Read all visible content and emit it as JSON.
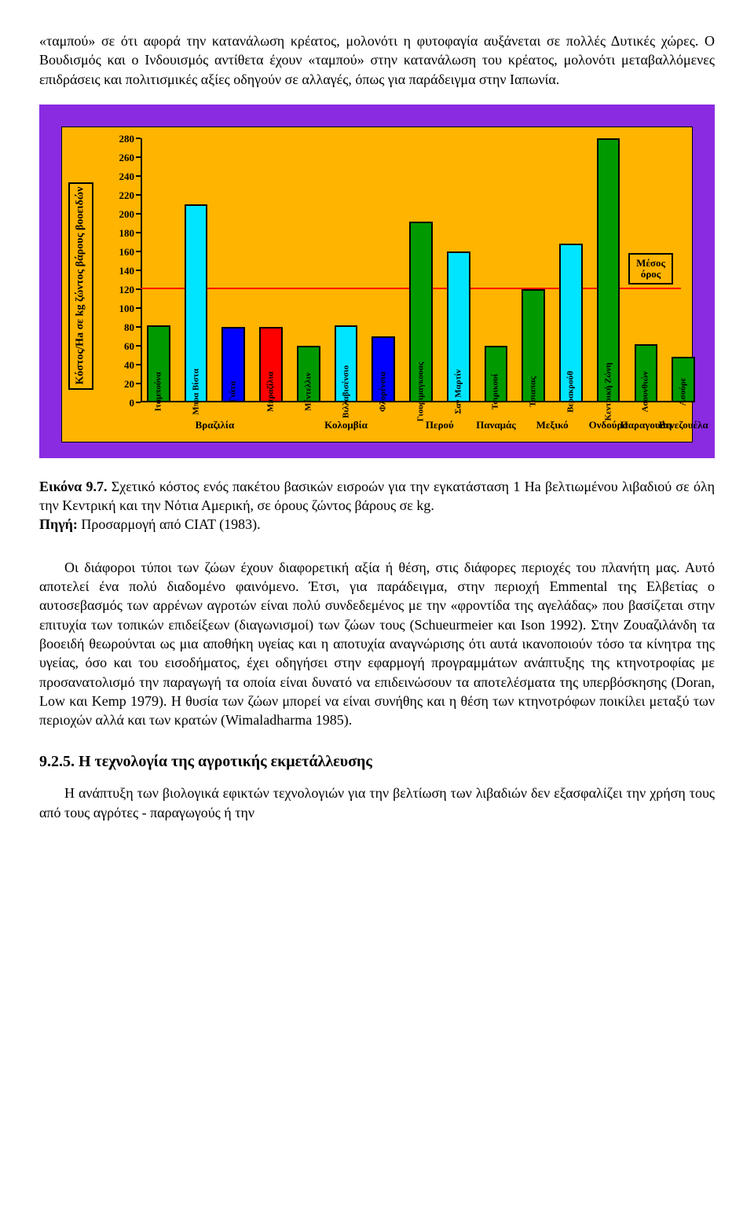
{
  "intro_para": "«ταμπού» σε ότι αφορά την κατανάλωση κρέατος, μολονότι η φυτοφαγία αυξάνεται σε πολλές Δυτικές χώρες. Ο Βουδισμός και ο Ινδουισμός αντίθετα έχουν «ταμπού» στην κατανάλωση του κρέατος, μολονότι μεταβαλλόμενες επιδράσεις και πολιτισμικές αξίες οδηγούν σε αλλαγές, όπως για παράδειγμα στην Ιαπωνία.",
  "chart": {
    "ymax": 280,
    "ystep": 20,
    "ytitle": "Κόστος/Ha σε kg ζώντος βάρους βοοειδών",
    "mean_value": 120,
    "legend": "Μέσος όρος",
    "background": "#ffb400",
    "frame_bg": "#8a2be2",
    "mean_color": "#ff0000",
    "colors": {
      "green": "#009a00",
      "cyan": "#00e5ff",
      "blue": "#0000ff",
      "red": "#ff0000"
    },
    "bars": [
      {
        "label": "Ιταμπούνα",
        "value": 82,
        "color": "green"
      },
      {
        "label": "Μποα Βίστα",
        "value": 210,
        "color": "cyan"
      },
      {
        "label": "Γιάτα",
        "value": 80,
        "color": "blue"
      },
      {
        "label": "Μπραζίλια",
        "value": 80,
        "color": "red"
      },
      {
        "label": "Μέντελλιν",
        "value": 60,
        "color": "green"
      },
      {
        "label": "Βιλλαβισένσιο",
        "value": 82,
        "color": "cyan"
      },
      {
        "label": "Φλορένσια",
        "value": 70,
        "color": "blue"
      },
      {
        "label": "Γιουριμαγκουας",
        "value": 192,
        "color": "green"
      },
      {
        "label": "Σαν Μαρτίν",
        "value": 160,
        "color": "cyan"
      },
      {
        "label": "Τσιρικουί",
        "value": 60,
        "color": "green"
      },
      {
        "label": "Τσιαπας",
        "value": 120,
        "color": "green"
      },
      {
        "label": "Βερακρούθ",
        "value": 168,
        "color": "cyan"
      },
      {
        "label": "Κεντρική Ζώνη",
        "value": 280,
        "color": "green"
      },
      {
        "label": "Ασουνθιών",
        "value": 62,
        "color": "green"
      },
      {
        "label": "Ασούρε",
        "value": 48,
        "color": "green"
      }
    ],
    "countries": [
      {
        "label": "Βραζιλία",
        "center_bar": 1.5
      },
      {
        "label": "Κολομβία",
        "center_bar": 5.0
      },
      {
        "label": "Περού",
        "center_bar": 7.5
      },
      {
        "label": "Παναμάς",
        "center_bar": 9.0
      },
      {
        "label": "Μεξικό",
        "center_bar": 10.5
      },
      {
        "label": "Ονδούρα",
        "center_bar": 12.0
      },
      {
        "label": "Παραγουάη",
        "center_bar": 13.0
      },
      {
        "label": "Βενεζουέλα",
        "center_bar": 14.0
      }
    ]
  },
  "caption_label": "Εικόνα 9.7.",
  "caption_text": " Σχετικό κόστος ενός πακέτου βασικών εισροών για την εγκατάσταση 1 Ha βελτιωμένου λιβαδιού σε όλη την Κεντρική και την Νότια Αμερική, σε όρους ζώντος βάρους σε kg.",
  "source_label": "Πηγή:",
  "source_text": " Προσαρμογή από CIAT (1983).",
  "body_para": "Οι διάφοροι τύποι των ζώων έχουν διαφορετική αξία ή θέση, στις διάφορες περιοχές του πλανήτη μας. Αυτό αποτελεί ένα πολύ διαδομένο φαινόμενο. Έτσι, για παράδειγμα, στην περιοχή Emmental της Ελβετίας ο αυτοσεβασμός των αρρένων αγροτών είναι πολύ συνδεδεμένος με την «φροντίδα της αγελάδας» που βασίζεται στην επιτυχία των τοπικών επιδείξεων (διαγωνισμοί) των ζώων τους (Schueurmeier και Ison 1992). Στην Ζουαζιλάνδη τα βοοειδή θεωρούνται ως μια αποθήκη υγείας και η αποτυχία αναγνώρισης ότι αυτά ικανοποιούν τόσο τα κίνητρα της υγείας, όσο και του εισοδήματος, έχει οδηγήσει στην εφαρμογή προγραμμάτων ανάπτυξης της κτηνοτροφίας με προσανατολισμό την παραγωγή τα οποία είναι δυνατό να επιδεινώσουν τα αποτελέσματα της υπερβόσκησης (Doran, Low και Kemp 1979). Η θυσία των ζώων μπορεί να είναι συνήθης και η θέση των κτηνοτρόφων ποικίλει μεταξύ των περιοχών αλλά και των κρατών (Wimaladharma 1985).",
  "section_title": "9.2.5. Η τεχνολογία της αγροτικής εκμετάλλευσης",
  "last_para": "Η ανάπτυξη των βιολογικά εφικτών τεχνολογιών για την βελτίωση των λιβαδιών δεν εξασφαλίζει την χρήση τους από τους αγρότες - παραγωγούς ή την"
}
